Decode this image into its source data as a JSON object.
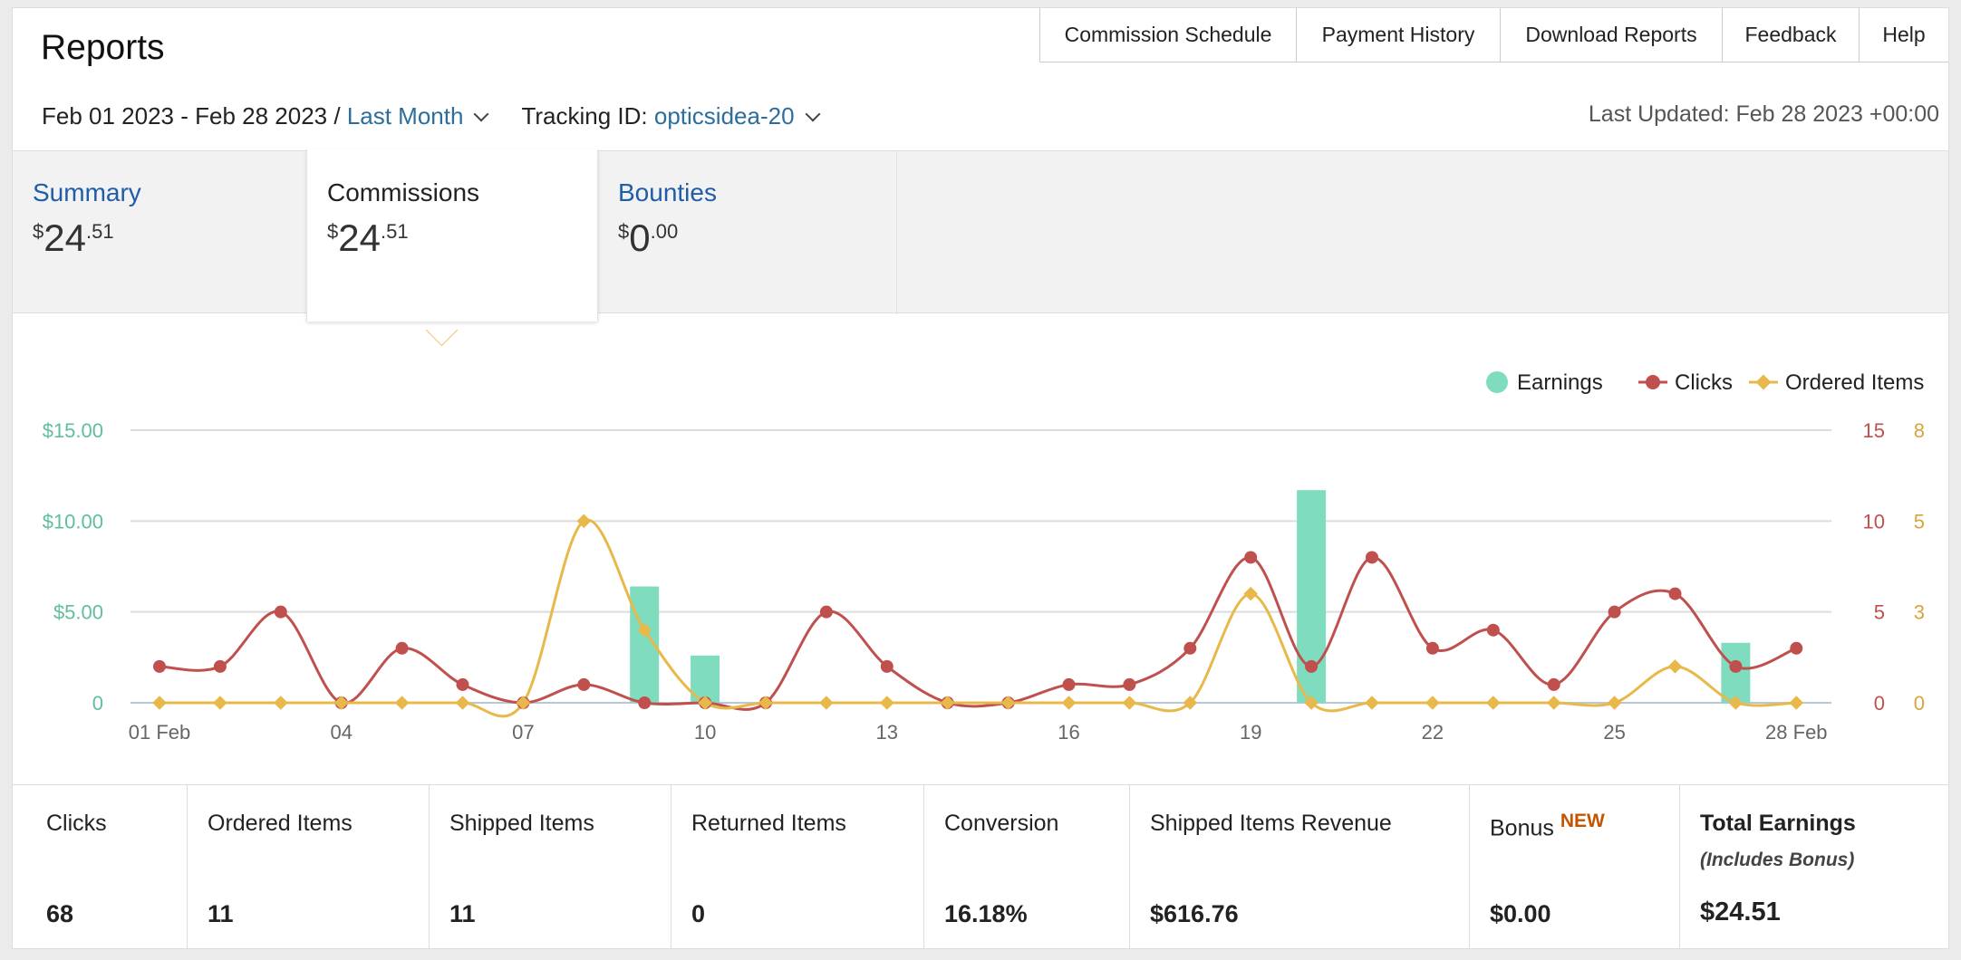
{
  "header": {
    "title": "Reports"
  },
  "nav": [
    "Commission Schedule",
    "Payment History",
    "Download Reports",
    "Feedback",
    "Help"
  ],
  "filters": {
    "date_range": "Feb 01 2023 - Feb 28 2023 /",
    "period": "Last Month",
    "tracking_label": "Tracking ID:",
    "tracking_id": "opticsidea-20",
    "last_updated": "Last Updated: Feb 28 2023 +00:00"
  },
  "tabs": [
    {
      "label": "Summary",
      "currency": "$",
      "whole": "24",
      "cents": ".51"
    },
    {
      "label": "Commissions",
      "currency": "$",
      "whole": "24",
      "cents": ".51",
      "active": true
    },
    {
      "label": "Bounties",
      "currency": "$",
      "whole": "0",
      "cents": ".00"
    }
  ],
  "chart_data": {
    "type": "bar+line",
    "legend": [
      {
        "name": "Earnings",
        "color": "#7fdcbf",
        "icon": "circle"
      },
      {
        "name": "Clicks",
        "color": "#c0504d",
        "icon": "circle"
      },
      {
        "name": "Ordered Items",
        "color": "#e8b94a",
        "icon": "diamond"
      }
    ],
    "legend_position": "top-right",
    "x_labels": [
      "01 Feb",
      "04",
      "07",
      "10",
      "13",
      "16",
      "19",
      "22",
      "25",
      "28 Feb"
    ],
    "x_label_days": [
      1,
      4,
      7,
      10,
      13,
      16,
      19,
      22,
      25,
      28
    ],
    "days": [
      1,
      2,
      3,
      4,
      5,
      6,
      7,
      8,
      9,
      10,
      11,
      12,
      13,
      14,
      15,
      16,
      17,
      18,
      19,
      20,
      21,
      22,
      23,
      24,
      25,
      26,
      27,
      28
    ],
    "y_left": {
      "ticks": [
        "$15.00",
        "$10.00",
        "$5.00",
        "0"
      ],
      "values": [
        15,
        10,
        5,
        0
      ],
      "range": [
        0,
        15
      ]
    },
    "y_right_clicks": {
      "ticks": [
        "15",
        "10",
        "5",
        "0"
      ],
      "values": [
        15,
        10,
        5,
        0
      ],
      "range": [
        0,
        15
      ]
    },
    "y_right_orders": {
      "ticks": [
        "8",
        "5",
        "3",
        "0"
      ],
      "values": [
        7.5,
        5,
        2.5,
        0
      ],
      "range": [
        0,
        7.5
      ]
    },
    "series": [
      {
        "name": "Earnings",
        "kind": "bar",
        "values": [
          0,
          0,
          0,
          0,
          0,
          0,
          0,
          0,
          6.4,
          2.6,
          0,
          0,
          0,
          0,
          0,
          0,
          0,
          0,
          0,
          11.7,
          0,
          0,
          0,
          0,
          0,
          0,
          3.3,
          0
        ]
      },
      {
        "name": "Clicks",
        "kind": "line",
        "values": [
          2,
          2,
          5,
          0,
          3,
          1,
          0,
          1,
          0,
          0,
          0,
          5,
          2,
          0,
          0,
          1,
          1,
          3,
          8,
          2,
          8,
          3,
          4,
          1,
          5,
          6,
          2,
          3
        ]
      },
      {
        "name": "Ordered Items",
        "kind": "line",
        "values": [
          0,
          0,
          0,
          0,
          0,
          0,
          0,
          5,
          2,
          0,
          0,
          0,
          0,
          0,
          0,
          0,
          0,
          0,
          3,
          0,
          0,
          0,
          0,
          0,
          0,
          1,
          0,
          0
        ]
      }
    ],
    "grid": true
  },
  "stats": [
    {
      "label": "Clicks",
      "value": "68"
    },
    {
      "label": "Ordered Items",
      "value": "11"
    },
    {
      "label": "Shipped Items",
      "value": "11"
    },
    {
      "label": "Returned Items",
      "value": "0"
    },
    {
      "label": "Conversion",
      "value": "16.18%"
    },
    {
      "label": "Shipped Items Revenue",
      "value": "$616.76"
    },
    {
      "label": "Bonus",
      "badge": "NEW",
      "value": "$0.00"
    },
    {
      "label": "Total Earnings",
      "sub": "(Includes Bonus)",
      "value": "$24.51"
    }
  ],
  "colors": {
    "earnings_axis": "#5fbf9a",
    "clicks_axis": "#c0504d",
    "orders_axis": "#d9a43b",
    "link": "#1f5da8"
  }
}
